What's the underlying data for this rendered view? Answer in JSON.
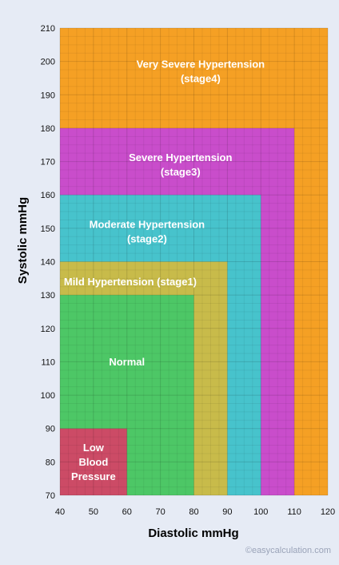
{
  "chart_data": {
    "type": "area",
    "title": "",
    "xlabel": "Diastolic mmHg",
    "ylabel": "Systolic mmHg",
    "xlim": [
      40,
      120
    ],
    "ylim": [
      70,
      210
    ],
    "x_ticks": [
      40,
      50,
      60,
      70,
      80,
      90,
      100,
      110,
      120
    ],
    "y_ticks": [
      70,
      80,
      90,
      100,
      110,
      120,
      130,
      140,
      150,
      160,
      170,
      180,
      190,
      200,
      210
    ],
    "grid": true,
    "regions": [
      {
        "label_lines": [
          "Very Severe Hypertension",
          "(stage4)"
        ],
        "x": [
          40,
          120
        ],
        "y": [
          70,
          210
        ],
        "color": "#f5a024",
        "label_at": [
          82,
          197
        ]
      },
      {
        "label_lines": [
          "Severe Hypertension",
          "(stage3)"
        ],
        "x": [
          40,
          110
        ],
        "y": [
          70,
          180
        ],
        "color": "#c94dcb",
        "label_at": [
          76,
          169
        ]
      },
      {
        "label_lines": [
          "Moderate Hypertension",
          "(stage2)"
        ],
        "x": [
          40,
          100
        ],
        "y": [
          70,
          160
        ],
        "color": "#47c3cc",
        "label_at": [
          66,
          149
        ]
      },
      {
        "label_lines": [
          "Mild Hypertension (stage1)"
        ],
        "x": [
          40,
          90
        ],
        "y": [
          70,
          140
        ],
        "color": "#c8bb4a",
        "label_at": [
          61,
          134
        ]
      },
      {
        "label_lines": [
          "Normal"
        ],
        "x": [
          40,
          80
        ],
        "y": [
          70,
          130
        ],
        "color": "#4dc766",
        "label_at": [
          60,
          110
        ]
      },
      {
        "label_lines": [
          "Low",
          "Blood",
          "Pressure"
        ],
        "x": [
          40,
          60
        ],
        "y": [
          70,
          90
        ],
        "color": "#cc4b66",
        "label_at": [
          50,
          80
        ]
      }
    ]
  },
  "credit": "©easycalculation.com"
}
